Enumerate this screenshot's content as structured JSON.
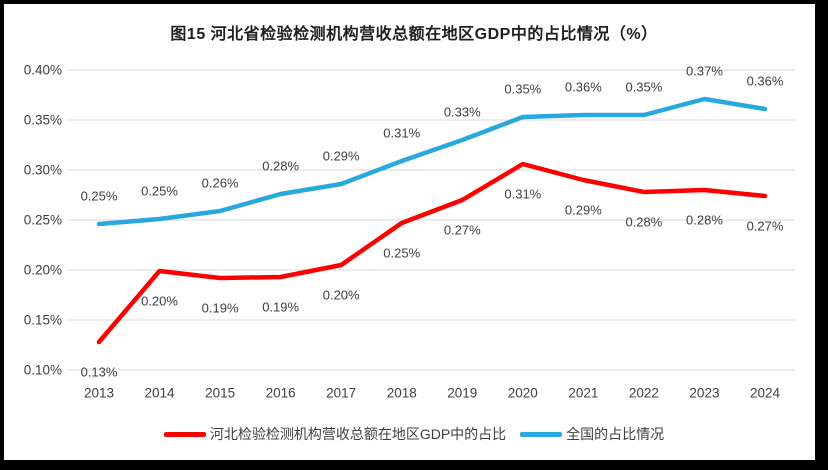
{
  "title": "图15 河北省检验检测机构营收总额在地区GDP中的占比情况（%）",
  "chart_data": {
    "type": "line",
    "x": [
      "2013",
      "2014",
      "2015",
      "2016",
      "2017",
      "2018",
      "2019",
      "2020",
      "2021",
      "2022",
      "2023",
      "2024"
    ],
    "series": [
      {
        "name": "河北检验检测机构营收总额在地区GDP中的占比",
        "color": "#FE0000",
        "values": [
          0.13,
          0.2,
          0.19,
          0.19,
          0.2,
          0.25,
          0.27,
          0.31,
          0.29,
          0.28,
          0.28,
          0.27
        ],
        "plot_values": [
          0.128,
          0.199,
          0.192,
          0.193,
          0.205,
          0.247,
          0.27,
          0.306,
          0.29,
          0.278,
          0.28,
          0.274
        ],
        "labels": [
          "0.13%",
          "0.20%",
          "0.19%",
          "0.19%",
          "0.20%",
          "0.25%",
          "0.27%",
          "0.31%",
          "0.29%",
          "0.28%",
          "0.28%",
          "0.27%"
        ],
        "label_side": "below"
      },
      {
        "name": "全国的占比情况",
        "color": "#29A8E0",
        "values": [
          0.25,
          0.25,
          0.26,
          0.28,
          0.29,
          0.31,
          0.33,
          0.35,
          0.36,
          0.35,
          0.37,
          0.36
        ],
        "plot_values": [
          0.246,
          0.251,
          0.259,
          0.276,
          0.286,
          0.309,
          0.33,
          0.353,
          0.355,
          0.355,
          0.371,
          0.361
        ],
        "labels": [
          "0.25%",
          "0.25%",
          "0.26%",
          "0.28%",
          "0.29%",
          "0.31%",
          "0.33%",
          "0.35%",
          "0.36%",
          "0.35%",
          "0.37%",
          "0.36%"
        ],
        "label_side": "above"
      }
    ],
    "ylim": [
      0.1,
      0.4
    ],
    "yticks": [
      {
        "label": "0.40%",
        "value": 0.4
      },
      {
        "label": "0.35%",
        "value": 0.35
      },
      {
        "label": "0.30%",
        "value": 0.3
      },
      {
        "label": "0.25%",
        "value": 0.25
      },
      {
        "label": "0.20%",
        "value": 0.2
      },
      {
        "label": "0.15%",
        "value": 0.15
      },
      {
        "label": "0.10%",
        "value": 0.1
      }
    ],
    "grid": true,
    "legend_position": "bottom",
    "xlabel": "",
    "ylabel": ""
  },
  "colors": {
    "grid": "#D9D9D9",
    "tick_text": "#404040",
    "data_label_text": "#404040",
    "title_text": "#1f1f1f",
    "background": "#ffffff",
    "frame": "#000000"
  }
}
